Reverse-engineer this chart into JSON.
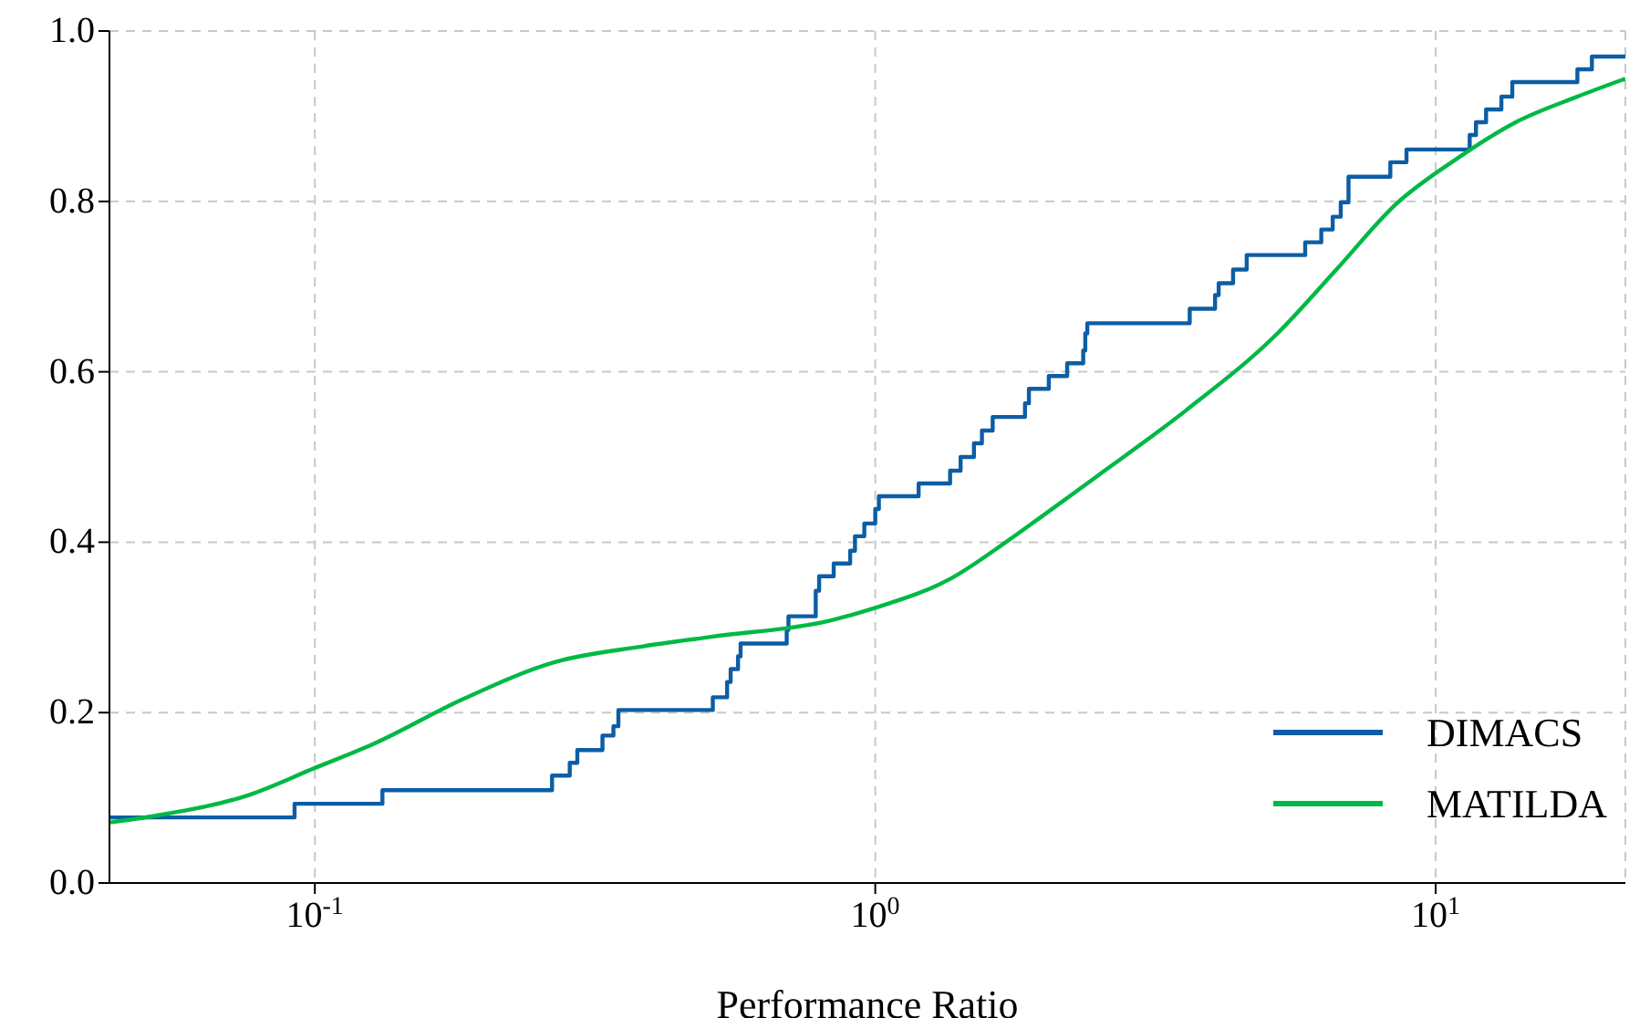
{
  "chart_data": {
    "type": "line",
    "xlabel": "Performance Ratio",
    "log": "x",
    "grid": true,
    "legend": "bottom right",
    "xlim": [
      0.043,
      21.8
    ],
    "xticks": [
      {
        "value": 0.1,
        "label": "10$^{-1}$"
      },
      {
        "value": 1,
        "label": "10$^{0}$"
      },
      {
        "value": 10,
        "label": "10$^{1}$"
      }
    ],
    "ylim": [
      0,
      1
    ],
    "yticks": [
      {
        "value": 0,
        "label": "0.0"
      },
      {
        "value": 0.2,
        "label": "0.2"
      },
      {
        "value": 0.4,
        "label": "0.4"
      },
      {
        "value": 0.6,
        "label": "0.6"
      },
      {
        "value": 0.8,
        "label": "0.8"
      },
      {
        "value": 1,
        "label": "1.0"
      }
    ],
    "series": [
      {
        "name": "DIMACS",
        "type": "step",
        "color": "#0c5da5",
        "x": [
          0.043,
          0.092,
          0.132,
          0.265,
          0.285,
          0.294,
          0.326,
          0.341,
          0.348,
          0.513,
          0.544,
          0.552,
          0.569,
          0.575,
          0.695,
          0.7,
          0.783,
          0.794,
          0.843,
          0.902,
          0.92,
          0.956,
          1.0,
          1.015,
          1.195,
          1.36,
          1.42,
          1.5,
          1.55,
          1.62,
          1.85,
          1.88,
          2.04,
          2.2,
          2.35,
          2.37,
          2.39,
          3.64,
          4.04,
          4.1,
          4.35,
          4.6,
          5.85,
          6.25,
          6.55,
          6.77,
          6.99,
          8.3,
          8.87,
          11.5,
          11.8,
          12.3,
          13.1,
          13.7,
          17.9,
          19.0,
          21.8
        ],
        "values": [
          0.077,
          0.093,
          0.109,
          0.126,
          0.141,
          0.156,
          0.173,
          0.184,
          0.203,
          0.218,
          0.236,
          0.251,
          0.266,
          0.281,
          0.297,
          0.313,
          0.343,
          0.36,
          0.375,
          0.39,
          0.407,
          0.422,
          0.439,
          0.454,
          0.469,
          0.484,
          0.5,
          0.516,
          0.531,
          0.547,
          0.563,
          0.58,
          0.595,
          0.61,
          0.625,
          0.645,
          0.657,
          0.674,
          0.69,
          0.704,
          0.72,
          0.737,
          0.752,
          0.767,
          0.782,
          0.799,
          0.829,
          0.846,
          0.861,
          0.878,
          0.893,
          0.908,
          0.923,
          0.94,
          0.955,
          0.97,
          0.97
        ]
      },
      {
        "name": "MATILDA",
        "type": "line",
        "color": "#00b945",
        "x": [
          0.043,
          0.052,
          0.076,
          0.1,
          0.127,
          0.184,
          0.267,
          0.387,
          0.509,
          0.83,
          1.0,
          1.37,
          1.71,
          1.98,
          2.47,
          3.59,
          5.2,
          6.65,
          8.5,
          10.9,
          13.9,
          17.9,
          21.8
        ],
        "values": [
          0.071,
          0.079,
          0.103,
          0.135,
          0.163,
          0.216,
          0.259,
          0.278,
          0.289,
          0.308,
          0.323,
          0.358,
          0.4,
          0.43,
          0.476,
          0.555,
          0.644,
          0.72,
          0.797,
          0.85,
          0.893,
          0.923,
          0.944
        ]
      }
    ]
  }
}
